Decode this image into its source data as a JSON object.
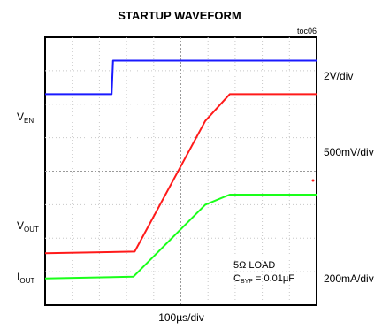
{
  "chart_data": {
    "type": "line",
    "title": "STARTUP WAVEFORM",
    "figure_id": "toc06",
    "xlabel": "100µs/div",
    "x_unit": "divisions",
    "x_divisions": 10,
    "y_divisions": 8,
    "grid": true,
    "series": [
      {
        "name": "VEN",
        "label_main": "V",
        "label_sub": "EN",
        "color": "#1a1aff",
        "scale": "2V/div",
        "points": [
          [
            0,
            6.3
          ],
          [
            2.45,
            6.3
          ],
          [
            2.5,
            7.3
          ],
          [
            10,
            7.3
          ]
        ]
      },
      {
        "name": "VOUT",
        "label_main": "V",
        "label_sub": "OUT",
        "color": "#ff1a1a",
        "scale": "500mV/div",
        "points": [
          [
            0,
            1.55
          ],
          [
            3.3,
            1.6
          ],
          [
            5.9,
            5.5
          ],
          [
            6.8,
            6.3
          ],
          [
            10,
            6.3
          ]
        ]
      },
      {
        "name": "IOUT",
        "label_main": "I",
        "label_sub": "OUT",
        "color": "#1aff1a",
        "scale": "200mA/div",
        "points": [
          [
            0,
            0.8
          ],
          [
            3.25,
            0.85
          ],
          [
            5.9,
            3.0
          ],
          [
            6.8,
            3.3
          ],
          [
            10,
            3.3
          ]
        ]
      }
    ],
    "annotations": [
      {
        "text": "5Ω LOAD"
      },
      {
        "text_main": "C",
        "text_sub": "BYP",
        "text_rest": " = 0.01µF"
      }
    ]
  }
}
